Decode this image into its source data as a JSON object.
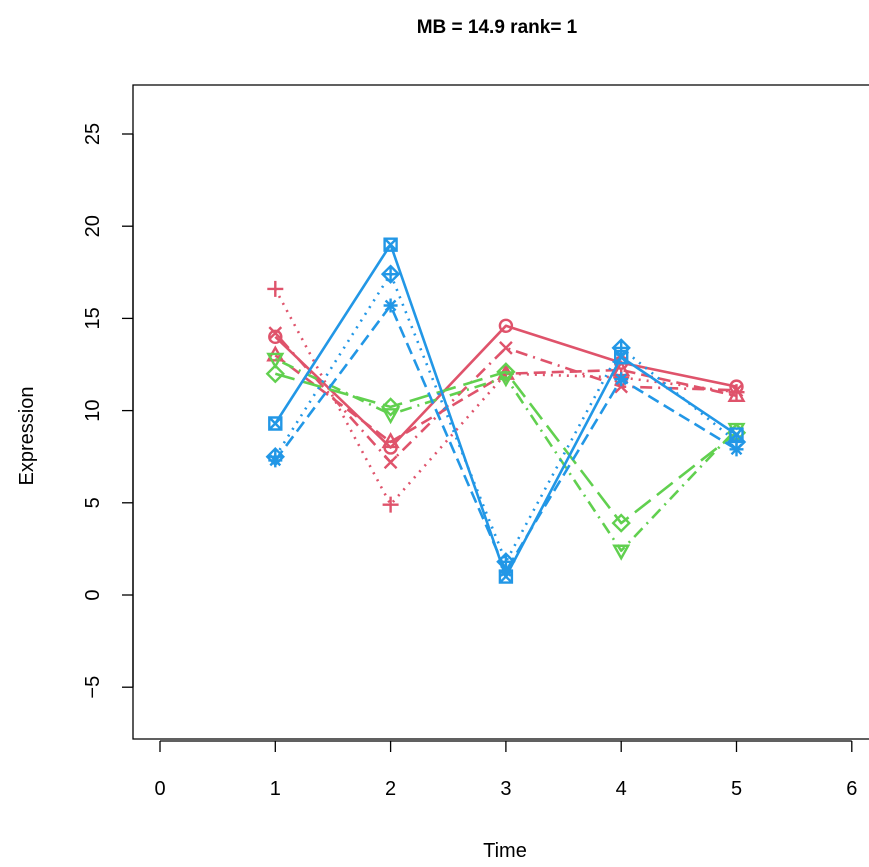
{
  "chart_data": {
    "type": "line",
    "title": "MB = 14.9  rank= 1",
    "xlabel": "Time",
    "ylabel": "Expression",
    "xlim": [
      -0.25,
      6.25
    ],
    "ylim": [
      -7.7,
      27.7
    ],
    "x_ticks": [
      "0",
      "1",
      "2",
      "3",
      "4",
      "5",
      "6"
    ],
    "y_ticks": [
      "−5",
      "0",
      "5",
      "10",
      "15",
      "20",
      "25"
    ],
    "grid": false,
    "legend": "none",
    "x": [
      1,
      2,
      3,
      4,
      5
    ],
    "series": [
      {
        "color": "#DF536B",
        "linestyle": "solid",
        "marker": "circle",
        "values": [
          14.0,
          8.0,
          14.6,
          12.6,
          11.3
        ]
      },
      {
        "color": "#DF536B",
        "linestyle": "dashed",
        "marker": "triangle-up",
        "values": [
          13.0,
          8.3,
          12.0,
          12.2,
          10.8
        ]
      },
      {
        "color": "#DF536B",
        "linestyle": "dotted",
        "marker": "plus",
        "values": [
          16.6,
          4.9,
          12.0,
          11.8,
          11.0
        ]
      },
      {
        "color": "#DF536B",
        "linestyle": "dotdash",
        "marker": "cross",
        "values": [
          14.2,
          7.2,
          13.4,
          11.3,
          11.1
        ]
      },
      {
        "color": "#61D04F",
        "linestyle": "dotdash",
        "marker": "triangle-down",
        "values": [
          12.8,
          9.8,
          11.8,
          2.4,
          9.0
        ]
      },
      {
        "color": "#61D04F",
        "linestyle": "longdash",
        "marker": "diamond",
        "values": [
          12.0,
          10.2,
          12.1,
          3.9,
          8.8
        ]
      },
      {
        "color": "#2297E6",
        "linestyle": "solid",
        "marker": "square-cross",
        "values": [
          9.3,
          19.0,
          1.0,
          12.9,
          8.7
        ]
      },
      {
        "color": "#2297E6",
        "linestyle": "dashed",
        "marker": "asterisk",
        "values": [
          7.3,
          15.7,
          1.3,
          11.7,
          7.9
        ]
      },
      {
        "color": "#2297E6",
        "linestyle": "dotted",
        "marker": "diamond-plus",
        "values": [
          7.5,
          17.4,
          1.8,
          13.4,
          8.3
        ]
      }
    ]
  }
}
